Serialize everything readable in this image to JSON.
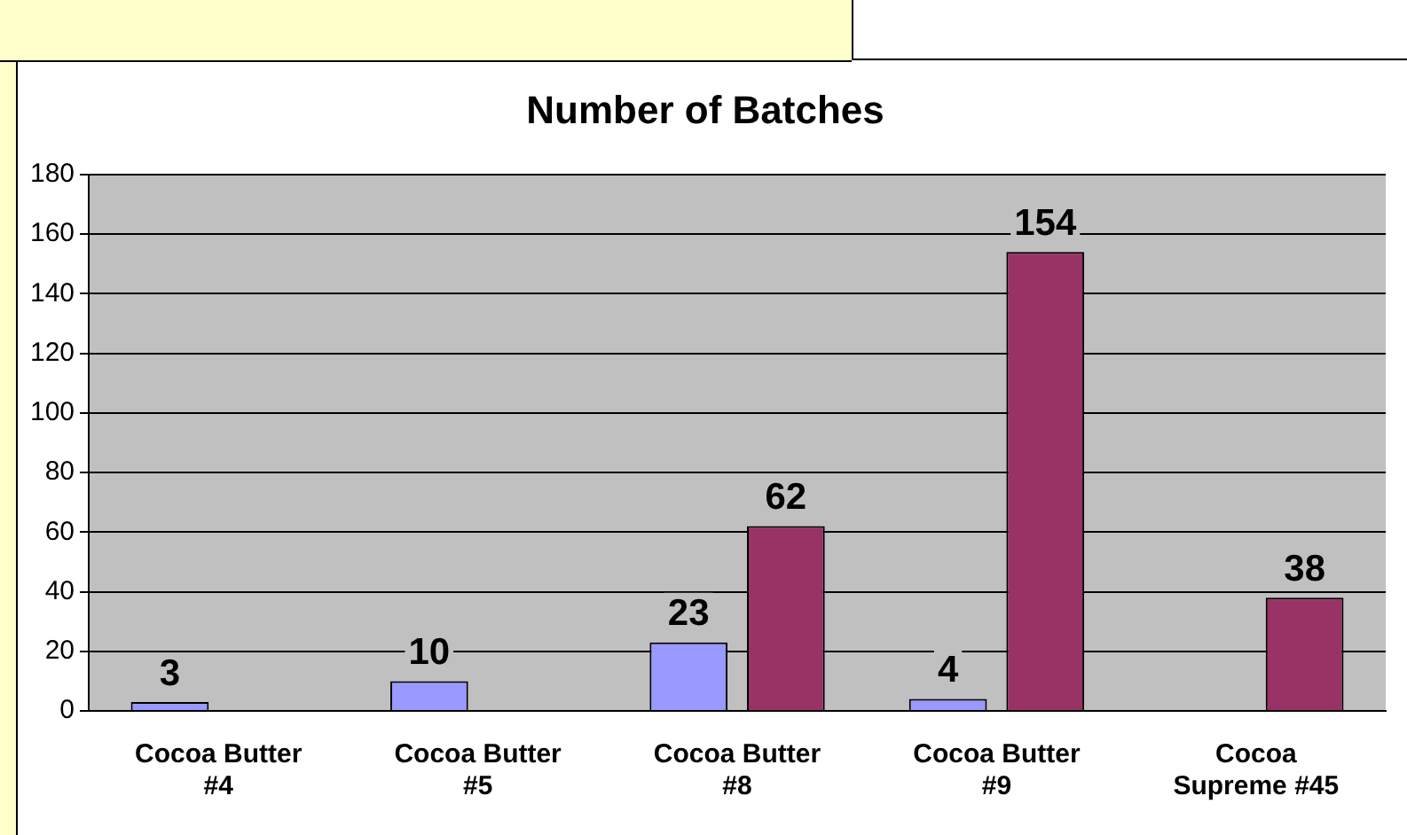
{
  "chart_data": {
    "type": "bar",
    "title": "Number of Batches",
    "categories": [
      "Cocoa Butter #4",
      "Cocoa Butter #5",
      "Cocoa Butter #8",
      "Cocoa Butter #9",
      "Cocoa Supreme #45"
    ],
    "series": [
      {
        "color": "#9999ff",
        "values": [
          3,
          10,
          23,
          4,
          null
        ]
      },
      {
        "color": "#993366",
        "values": [
          null,
          null,
          62,
          154,
          38
        ]
      }
    ],
    "ylim": [
      0,
      180
    ],
    "yticks": [
      0,
      20,
      40,
      60,
      80,
      100,
      120,
      140,
      160,
      180
    ],
    "grid": "y",
    "legend": false,
    "data_labels": true
  }
}
